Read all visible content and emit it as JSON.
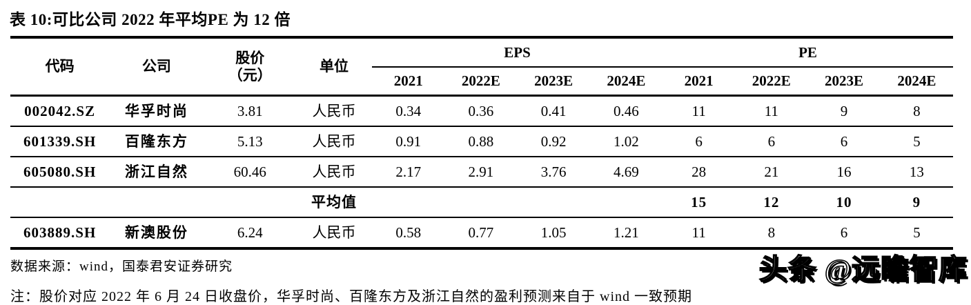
{
  "title": "表 10:可比公司 2022 年平均PE 为 12 倍",
  "table": {
    "headers": {
      "code": "代码",
      "company": "公司",
      "price_line1": "股价",
      "price_line2": "（元）",
      "unit": "单位",
      "eps_group": "EPS",
      "pe_group": "PE",
      "eps_years": [
        "2021",
        "2022E",
        "2023E",
        "2024E"
      ],
      "pe_years": [
        "2021",
        "2022E",
        "2023E",
        "2024E"
      ]
    },
    "rows": [
      {
        "code": "002042.SZ",
        "company": "华孚时尚",
        "price": "3.81",
        "unit": "人民币",
        "eps": [
          "0.34",
          "0.36",
          "0.41",
          "0.46"
        ],
        "pe": [
          "11",
          "11",
          "9",
          "8"
        ]
      },
      {
        "code": "601339.SH",
        "company": "百隆东方",
        "price": "5.13",
        "unit": "人民币",
        "eps": [
          "0.91",
          "0.88",
          "0.92",
          "1.02"
        ],
        "pe": [
          "6",
          "6",
          "6",
          "5"
        ]
      },
      {
        "code": "605080.SH",
        "company": "浙江自然",
        "price": "60.46",
        "unit": "人民币",
        "eps": [
          "2.17",
          "2.91",
          "3.76",
          "4.69"
        ],
        "pe": [
          "28",
          "21",
          "16",
          "13"
        ]
      },
      {
        "code": "",
        "company": "",
        "price": "",
        "unit": "平均值",
        "eps": [
          "",
          "",
          "",
          ""
        ],
        "pe": [
          "15",
          "12",
          "10",
          "9"
        ]
      },
      {
        "code": "603889.SH",
        "company": "新澳股份",
        "price": "6.24",
        "unit": "人民币",
        "eps": [
          "0.58",
          "0.77",
          "1.05",
          "1.21"
        ],
        "pe": [
          "11",
          "8",
          "6",
          "5"
        ]
      }
    ]
  },
  "footer": {
    "source": "数据来源：wind，国泰君安证券研究",
    "note": "注：股价对应 2022 年 6 月 24 日收盘价，华孚时尚、百隆东方及浙江自然的盈利预测来自于 wind 一致预期"
  },
  "watermark": "头条 @远瞻智库",
  "colors": {
    "text": "#000000",
    "background": "#ffffff",
    "watermark_fill": "#ffffff",
    "watermark_outline": "#000000"
  }
}
